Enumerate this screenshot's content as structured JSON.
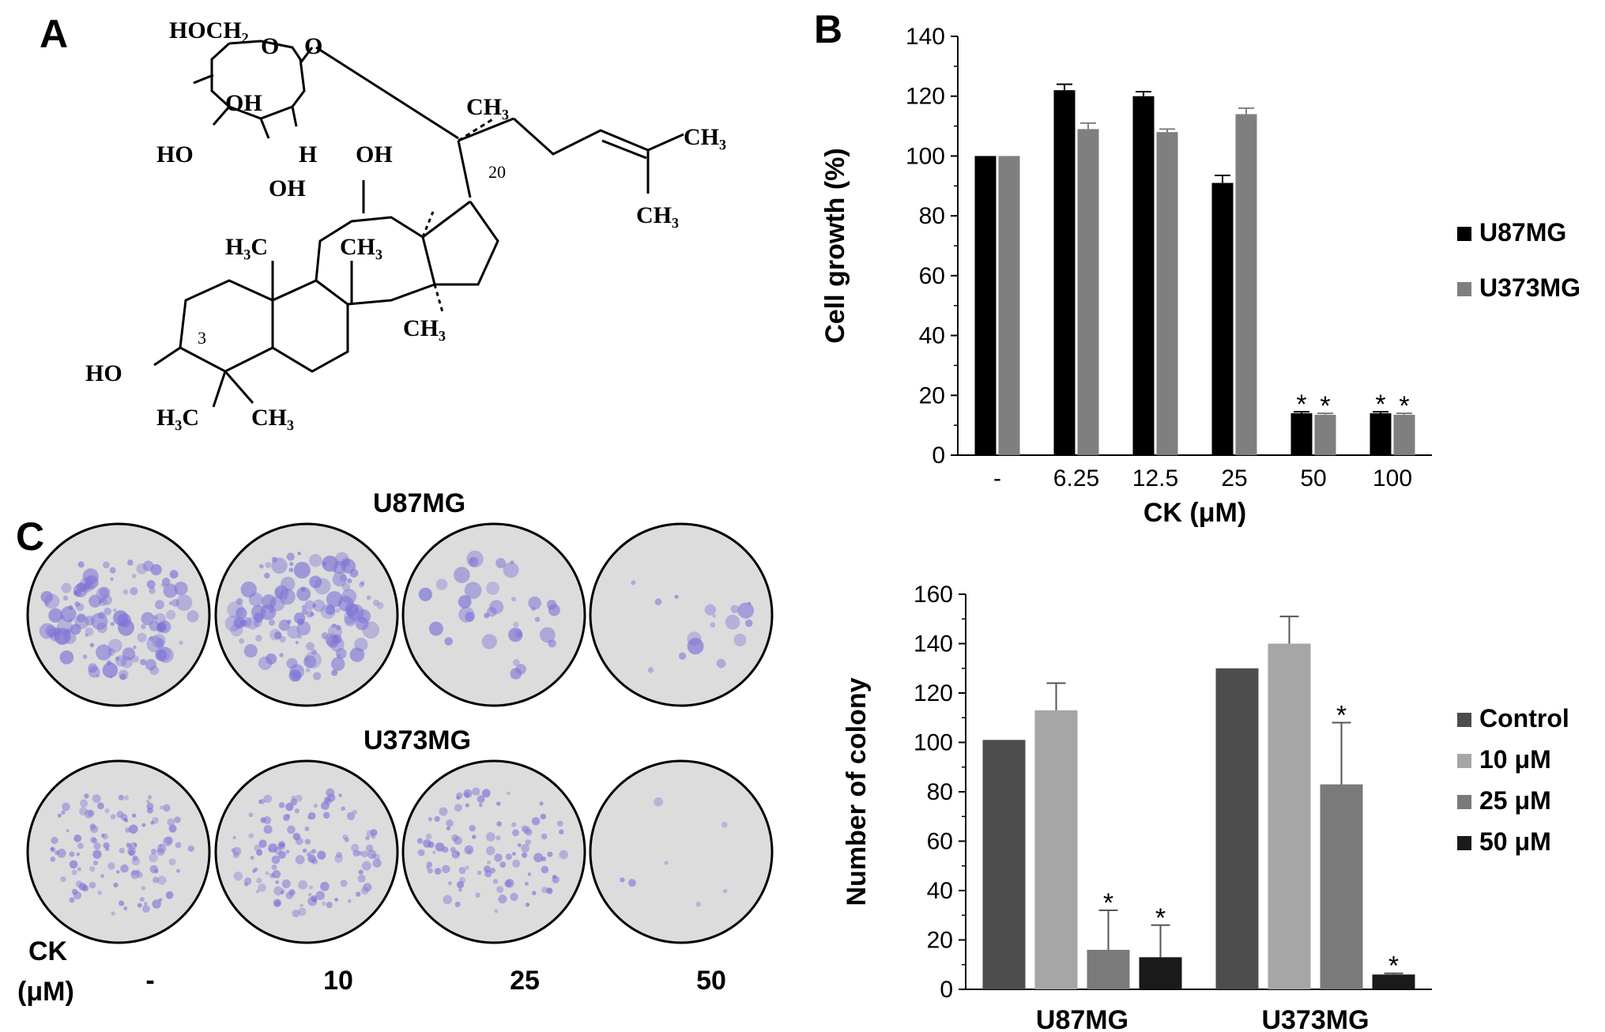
{
  "panels": {
    "a": "A",
    "b": "B",
    "c": "C"
  },
  "structure": {
    "labels": {
      "hoch2": "HOCH₂",
      "o_ring": "O",
      "o_link": "O",
      "oh_sugar1": "OH",
      "ho_sugar": "HO",
      "h_sugar": "H",
      "oh_sugar2": "OH",
      "ch3_c20": "CH₃",
      "ch3_tail1": "CH₃",
      "ch3_tail2": "CH₃",
      "c20": "20",
      "oh_c12": "OH",
      "h3c_c10": "H₃C",
      "ch3_c8": "CH₃",
      "ch3_c14": "CH₃",
      "c3": "3",
      "ho_c3": "HO",
      "h3c_c4": "H₃C",
      "ch3_c4": "CH₃"
    }
  },
  "panel_c": {
    "row1_label": "U87MG",
    "row2_label": "U373MG",
    "ck_label_line1": "CK",
    "ck_label_line2": "(μM)",
    "doses": [
      "-",
      "10",
      "25",
      "50"
    ],
    "dish_stain_levels": {
      "U87MG": [
        0.85,
        0.85,
        0.25,
        0.12
      ],
      "U373MG": [
        0.8,
        0.85,
        0.7,
        0.05
      ]
    }
  },
  "chart_data": [
    {
      "type": "bar",
      "panel": "B",
      "categories": [
        "-",
        "6.25",
        "12.5",
        "25",
        "50",
        "100"
      ],
      "xlabel": "CK (μM)",
      "ylabel": "Cell growth (%)",
      "ylim": [
        0,
        140
      ],
      "yticks": [
        0,
        20,
        40,
        60,
        80,
        100,
        120,
        140
      ],
      "legend_position": "right",
      "series": [
        {
          "name": "U87MG",
          "color": "#000000",
          "values": [
            100,
            122,
            120,
            91,
            14,
            14
          ],
          "errors": [
            0,
            2,
            1.5,
            2.5,
            0.5,
            0.5
          ],
          "significant": [
            false,
            false,
            false,
            false,
            true,
            true
          ]
        },
        {
          "name": "U373MG",
          "color": "#7f7f7f",
          "values": [
            100,
            109,
            108,
            114,
            13.5,
            13.5
          ],
          "errors": [
            0,
            2,
            1,
            2,
            0.5,
            0.5
          ],
          "significant": [
            false,
            false,
            false,
            false,
            true,
            true
          ]
        }
      ],
      "significance_mark": "*"
    },
    {
      "type": "bar",
      "panel": "C",
      "categories": [
        "U87MG",
        "U373MG"
      ],
      "ylabel": "Number of colony",
      "ylim": [
        0,
        160
      ],
      "yticks": [
        0,
        20,
        40,
        60,
        80,
        100,
        120,
        140,
        160
      ],
      "legend_position": "right",
      "series": [
        {
          "name": "Control",
          "color": "#4d4d4d",
          "values": [
            101,
            130
          ],
          "errors": [
            0,
            0
          ],
          "significant": [
            false,
            false
          ]
        },
        {
          "name": "10 μM",
          "color": "#a6a6a6",
          "values": [
            113,
            140
          ],
          "errors": [
            11,
            11
          ],
          "significant": [
            false,
            false
          ]
        },
        {
          "name": "25 μM",
          "color": "#7a7a7a",
          "values": [
            16,
            83
          ],
          "errors": [
            16,
            25
          ],
          "significant": [
            true,
            true
          ]
        },
        {
          "name": "50 μM",
          "color": "#1a1a1a",
          "values": [
            13,
            6
          ],
          "errors": [
            13,
            0.5
          ],
          "significant": [
            true,
            true
          ]
        }
      ],
      "significance_mark": "*"
    }
  ]
}
